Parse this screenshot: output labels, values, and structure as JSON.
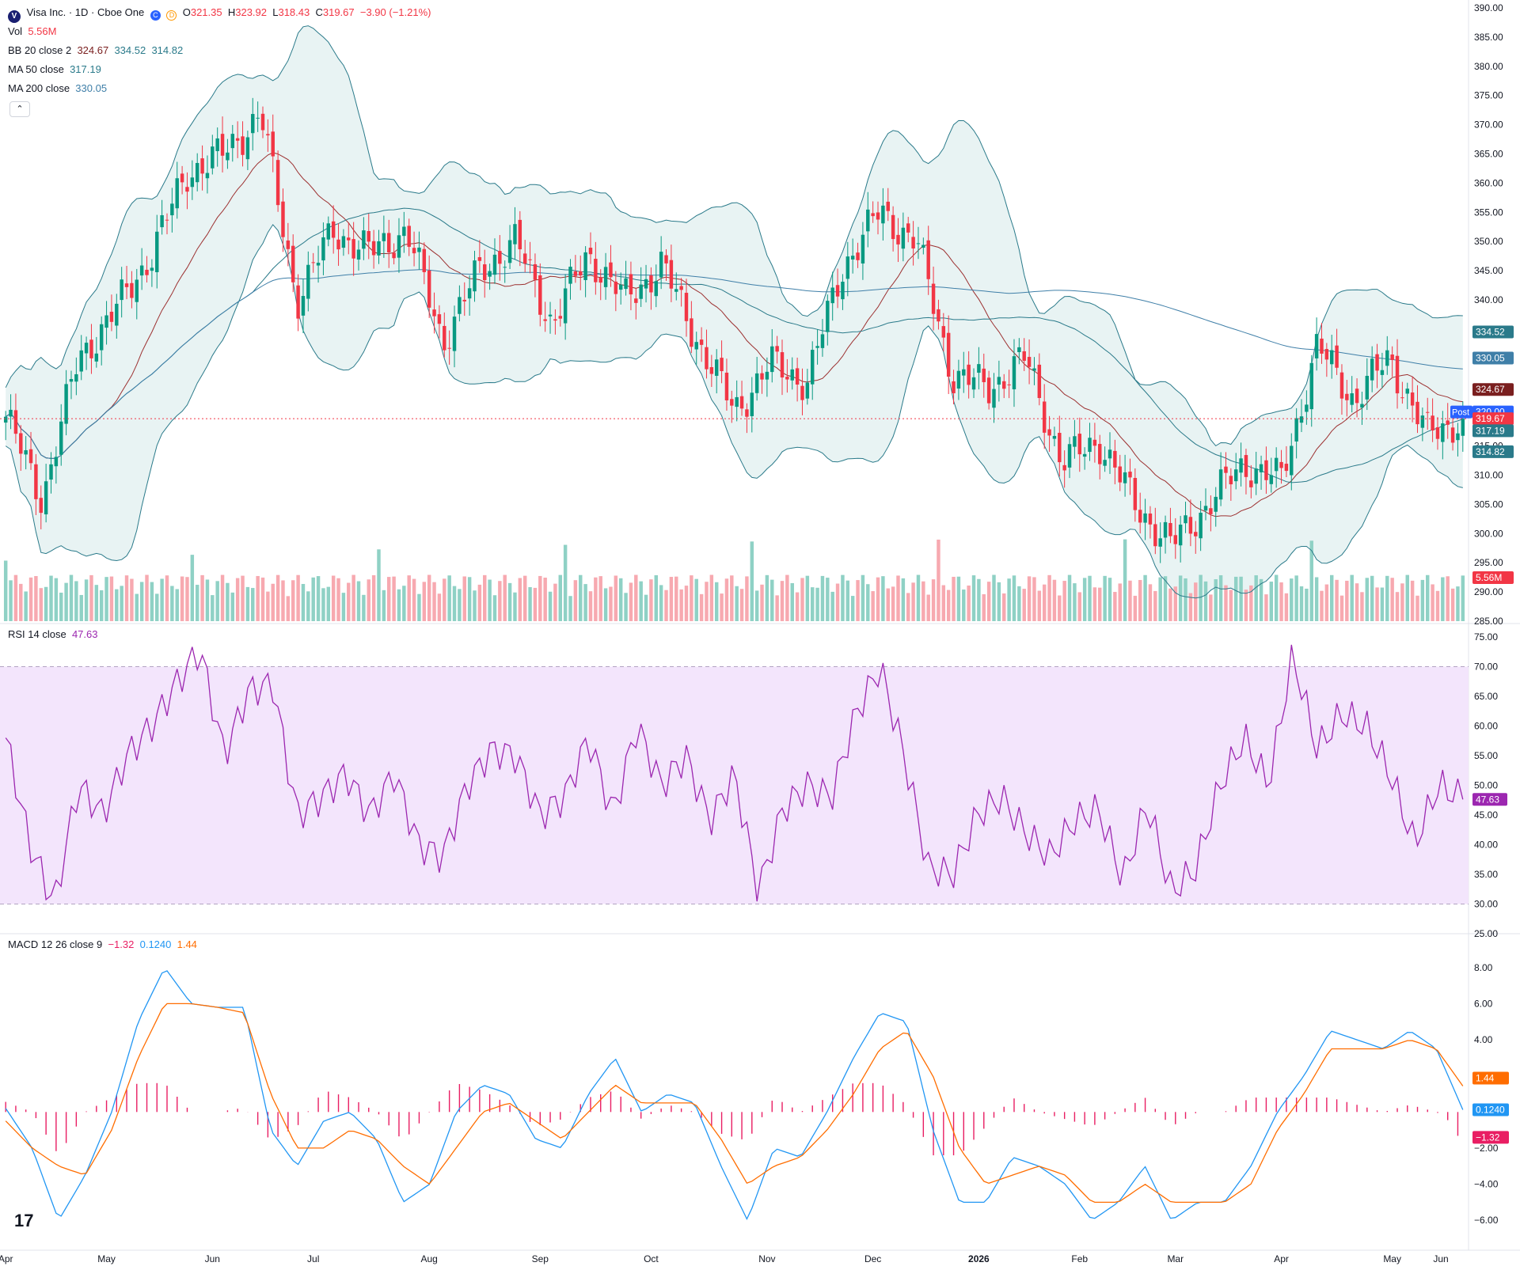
{
  "header": {
    "logo_letter": "V",
    "symbol": "Visa Inc. · 1D · Cboe One",
    "badge_c": "C",
    "badge_d": "D",
    "ohlc": {
      "o_label": "O",
      "o": "321.35",
      "h_label": "H",
      "h": "323.92",
      "l_label": "L",
      "l": "318.43",
      "c_label": "C",
      "c": "319.67",
      "change": "−3.90 (−1.21%)"
    }
  },
  "legends": {
    "vol_label": "Vol",
    "vol_value": "5.56M",
    "bb_label": "BB 20 close 2",
    "bb_mid": "324.67",
    "bb_upper": "334.52",
    "bb_lower": "314.82",
    "ma50_label": "MA 50 close",
    "ma50_value": "317.19",
    "ma200_label": "MA 200 close",
    "ma200_value": "330.05",
    "collapse": "⌃",
    "rsi_label": "RSI 14 close",
    "rsi_value": "47.63",
    "macd_label": "MACD 12 26 close 9",
    "macd_value": "−1.32",
    "macd_line": "0.1240",
    "macd_signal": "1.44"
  },
  "x_axis_labels": [
    "Apr",
    "May",
    "Jun",
    "Jul",
    "Aug",
    "Sep",
    "Oct",
    "Nov",
    "Dec",
    "2026",
    "Feb",
    "Mar",
    "Apr",
    "May",
    "Jun"
  ],
  "price_axis_ticks": [
    "390.00",
    "385.00",
    "380.00",
    "375.00",
    "370.00",
    "365.00",
    "360.00",
    "355.00",
    "350.00",
    "345.00",
    "340.00",
    "335.00",
    "330.00",
    "325.00",
    "320.00",
    "315.00",
    "310.00",
    "305.00",
    "300.00",
    "295.00",
    "290.00",
    "285.00"
  ],
  "rsi_axis_ticks": [
    "75.00",
    "70.00",
    "65.00",
    "60.00",
    "55.00",
    "50.00",
    "45.00",
    "40.00",
    "35.00",
    "30.00",
    "25.00"
  ],
  "macd_axis_ticks": [
    "8.00",
    "6.00",
    "4.00",
    "2.00",
    "0.00",
    "−2.00",
    "−4.00",
    "−6.00"
  ],
  "price_tags": [
    {
      "text": "334.52",
      "color": "#2a7a8a"
    },
    {
      "text": "330.05",
      "color": "#3f7fa8"
    },
    {
      "text": "324.67",
      "color": "#7a1f1f"
    },
    {
      "text": "320.00",
      "color": "#2962ff"
    },
    {
      "text": "319.67",
      "color": "#f23645"
    },
    {
      "text": "317.19",
      "color": "#2a7a8a"
    },
    {
      "text": "314.82",
      "color": "#2a7a8a"
    },
    {
      "text": "5.56M",
      "color": "#f23645"
    }
  ],
  "post_label": "Post",
  "rsi_tag": "47.63",
  "macd_tags": [
    {
      "text": "1.44",
      "color": "#ff6d00"
    },
    {
      "text": "0.1240",
      "color": "#2196f3"
    },
    {
      "text": "−1.32",
      "color": "#e91e63"
    }
  ],
  "tv_logo": "17",
  "colors": {
    "up": "#089981",
    "down": "#f23645",
    "bb_fill": "#e8f3f3",
    "rsi_band": "#f3e5fc",
    "rsi_line": "#9c27b0",
    "macd_line": "#2196f3",
    "signal_line": "#ff6d00",
    "hist": "#e91e63"
  },
  "chart_data": [
    {
      "type": "candlestick",
      "title": "Visa Inc. · 1D · Cboe One",
      "ylim": [
        285,
        390
      ],
      "x_labels": [
        "Apr",
        "May",
        "Jun",
        "Jul",
        "Aug",
        "Sep",
        "Oct",
        "Nov",
        "Dec",
        "2026",
        "Feb",
        "Mar",
        "Apr",
        "May",
        "Jun"
      ],
      "close_anchors": [
        {
          "x": "Apr",
          "y": 320
        },
        {
          "x": "early Apr",
          "y": 306
        },
        {
          "x": "mid Apr",
          "y": 330
        },
        {
          "x": "May",
          "y": 338
        },
        {
          "x": "mid May",
          "y": 348
        },
        {
          "x": "late May",
          "y": 362
        },
        {
          "x": "Jun",
          "y": 365
        },
        {
          "x": "mid Jun",
          "y": 372
        },
        {
          "x": "late Jun",
          "y": 340
        },
        {
          "x": "Jul",
          "y": 352
        },
        {
          "x": "mid Jul",
          "y": 348
        },
        {
          "x": "late Jul",
          "y": 352
        },
        {
          "x": "Aug",
          "y": 333
        },
        {
          "x": "mid Aug",
          "y": 345
        },
        {
          "x": "Sep",
          "y": 350
        },
        {
          "x": "mid Sep",
          "y": 336
        },
        {
          "x": "Oct",
          "y": 348
        },
        {
          "x": "mid Oct",
          "y": 340
        },
        {
          "x": "late Oct",
          "y": 346
        },
        {
          "x": "Nov",
          "y": 333
        },
        {
          "x": "mid Nov",
          "y": 321
        },
        {
          "x": "late Nov",
          "y": 329
        },
        {
          "x": "Dec",
          "y": 326
        },
        {
          "x": "mid Dec",
          "y": 346
        },
        {
          "x": "late Dec",
          "y": 355
        },
        {
          "x": "2026",
          "y": 350
        },
        {
          "x": "early Jan",
          "y": 327
        },
        {
          "x": "mid Jan",
          "y": 325
        },
        {
          "x": "Feb",
          "y": 330
        },
        {
          "x": "mid Feb",
          "y": 312
        },
        {
          "x": "Mar",
          "y": 316
        },
        {
          "x": "mid Mar",
          "y": 305
        },
        {
          "x": "late Mar",
          "y": 298
        },
        {
          "x": "Apr",
          "y": 305
        },
        {
          "x": "mid Apr",
          "y": 312
        },
        {
          "x": "late Apr",
          "y": 309
        },
        {
          "x": "May",
          "y": 332
        },
        {
          "x": "mid May",
          "y": 323
        },
        {
          "x": "late May",
          "y": 330
        },
        {
          "x": "Jun",
          "y": 317
        },
        {
          "x": "last",
          "y": 319.67
        }
      ],
      "last": {
        "open": 321.35,
        "high": 323.92,
        "low": 318.43,
        "close": 319.67
      },
      "bollinger": {
        "period": 20,
        "mult": 2,
        "mid": 324.67,
        "upper": 334.52,
        "lower": 314.82
      },
      "ma50": 317.19,
      "ma200": 330.05,
      "volume_last": "5.56M",
      "post_market": 320.0
    },
    {
      "type": "line",
      "title": "RSI 14 close",
      "ylim": [
        25,
        75
      ],
      "band": [
        30,
        70
      ],
      "last": 47.63,
      "series": [
        {
          "name": "RSI",
          "values": [
            58,
            40,
            30,
            50,
            45,
            55,
            60,
            67,
            73,
            55,
            66,
            67,
            45,
            48,
            52,
            45,
            52,
            40,
            38,
            50,
            56,
            55,
            45,
            48,
            58,
            45,
            60,
            50,
            55,
            44,
            52,
            32,
            46,
            50,
            48,
            62,
            70,
            55,
            36,
            35,
            45,
            48,
            42,
            38,
            44,
            46,
            34,
            47,
            32,
            36,
            50,
            58,
            50,
            72,
            56,
            62,
            60,
            52,
            40,
            50,
            47.63
          ]
        }
      ]
    },
    {
      "type": "line",
      "title": "MACD 12 26 close 9",
      "ylim": [
        -7,
        9
      ],
      "last": {
        "histogram": -1.32,
        "macd": 0.124,
        "signal": 1.44
      },
      "series": [
        {
          "name": "MACD",
          "values": [
            0.2,
            -2,
            -6,
            -3.5,
            0,
            5,
            8,
            6,
            5.8,
            5.8,
            -1,
            -3,
            -0.5,
            0,
            -1.5,
            -5,
            -4,
            0,
            1.5,
            1,
            -1.5,
            -2,
            1,
            3,
            0,
            1,
            0.5,
            -3,
            -6,
            -2,
            -2.5,
            0,
            3,
            5.5,
            5,
            -1,
            -5,
            -5,
            -2.5,
            -3,
            -4,
            -6,
            -5,
            -3,
            -6,
            -5,
            -5,
            -3,
            0,
            2,
            4.5,
            4,
            3.5,
            4.5,
            3.5,
            0.124
          ]
        },
        {
          "name": "Signal",
          "values": [
            -0.5,
            -2,
            -3,
            -3.5,
            -1,
            3,
            6,
            6,
            5.8,
            5.5,
            1,
            -2,
            -2,
            -1,
            -1.5,
            -3,
            -4,
            -2,
            0,
            0.5,
            -0.5,
            -1.5,
            0,
            1.5,
            0.5,
            0.5,
            0.5,
            -1.5,
            -4,
            -3,
            -2.5,
            -1,
            1,
            3.5,
            4.5,
            2,
            -2,
            -4,
            -3.5,
            -3,
            -3.5,
            -5,
            -5,
            -4,
            -5,
            -5,
            -5,
            -4,
            -1,
            1,
            3.5,
            3.5,
            3.5,
            4,
            3.5,
            1.44
          ]
        }
      ]
    }
  ]
}
